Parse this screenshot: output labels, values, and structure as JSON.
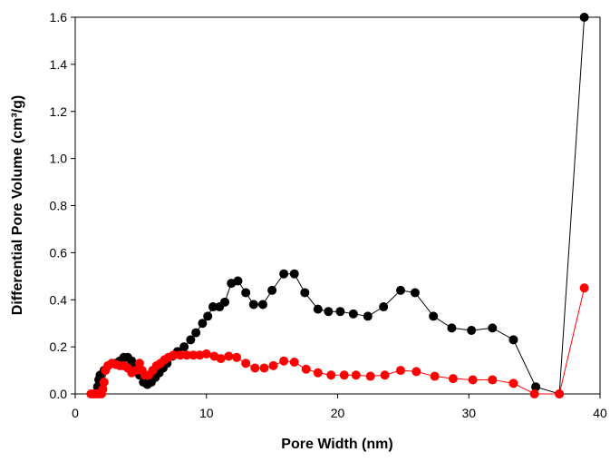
{
  "chart_data": {
    "type": "line",
    "xlabel": "Pore Width (nm)",
    "ylabel": "Differential Pore Volume (cm³/g)",
    "xlim": [
      0,
      40
    ],
    "xticks": [
      0,
      10,
      20,
      30,
      40
    ],
    "ylim": [
      0,
      1.6
    ],
    "yticks": [
      {
        "value": 0,
        "label": "0.0"
      },
      0.2,
      0.4,
      0.6,
      0.8,
      {
        "value": 1,
        "label": "1.0"
      },
      1.2,
      1.4,
      1.6
    ],
    "markers": true,
    "series": [
      {
        "color": "#000000",
        "x": [
          1.7,
          1.8,
          1.9,
          2.0,
          2.2,
          2.5,
          2.8,
          3.1,
          3.4,
          3.7,
          4.0,
          4.3,
          4.6,
          4.9,
          5.2,
          5.5,
          5.8,
          6.1,
          6.4,
          6.7,
          7.0,
          7.4,
          7.8,
          8.3,
          8.8,
          9.2,
          9.7,
          10.1,
          10.5,
          11.0,
          11.4,
          11.9,
          12.4,
          13.0,
          13.6,
          14.3,
          15.0,
          15.9,
          16.7,
          17.5,
          18.5,
          19.3,
          20.2,
          21.2,
          22.3,
          23.5,
          24.8,
          25.9,
          27.3,
          28.7,
          30.2,
          31.8,
          33.4,
          35.1,
          36.9,
          38.8
        ],
        "values": [
          0.03,
          0.06,
          0.08,
          0.08,
          0.1,
          0.12,
          0.13,
          0.13,
          0.14,
          0.155,
          0.155,
          0.14,
          0.11,
          0.08,
          0.05,
          0.04,
          0.05,
          0.07,
          0.09,
          0.11,
          0.13,
          0.16,
          0.18,
          0.2,
          0.23,
          0.26,
          0.3,
          0.33,
          0.37,
          0.37,
          0.39,
          0.47,
          0.48,
          0.43,
          0.38,
          0.38,
          0.44,
          0.51,
          0.51,
          0.43,
          0.36,
          0.35,
          0.35,
          0.34,
          0.33,
          0.37,
          0.44,
          0.43,
          0.33,
          0.28,
          0.27,
          0.28,
          0.23,
          0.03,
          0,
          1.6
        ]
      },
      {
        "color": "#ff0000",
        "x": [
          1.2,
          1.4,
          1.6,
          1.8,
          2.0,
          2.1,
          2.2,
          2.3,
          2.5,
          2.8,
          3.1,
          3.4,
          3.7,
          4.0,
          4.3,
          4.6,
          4.9,
          5.1,
          5.3,
          5.6,
          5.9,
          6.2,
          6.5,
          6.8,
          7.1,
          7.5,
          8.0,
          8.5,
          9.0,
          9.5,
          10.0,
          10.6,
          11.1,
          11.7,
          12.3,
          13.0,
          13.7,
          14.4,
          15.1,
          15.9,
          16.7,
          17.6,
          18.5,
          19.5,
          20.5,
          21.4,
          22.5,
          23.6,
          24.8,
          26.0,
          27.4,
          28.8,
          30.3,
          31.8,
          33.4,
          35.0,
          36.9,
          38.8
        ],
        "values": [
          0,
          0,
          0,
          0,
          0,
          0.02,
          0.05,
          0.1,
          0.12,
          0.13,
          0.125,
          0.12,
          0.12,
          0.11,
          0.09,
          0.1,
          0.13,
          0.1,
          0.08,
          0.08,
          0.1,
          0.12,
          0.13,
          0.145,
          0.155,
          0.165,
          0.165,
          0.165,
          0.165,
          0.165,
          0.17,
          0.16,
          0.15,
          0.16,
          0.155,
          0.13,
          0.11,
          0.11,
          0.12,
          0.14,
          0.135,
          0.105,
          0.09,
          0.08,
          0.08,
          0.08,
          0.075,
          0.08,
          0.1,
          0.095,
          0.075,
          0.065,
          0.06,
          0.06,
          0.045,
          0,
          0,
          0.45
        ]
      }
    ]
  }
}
